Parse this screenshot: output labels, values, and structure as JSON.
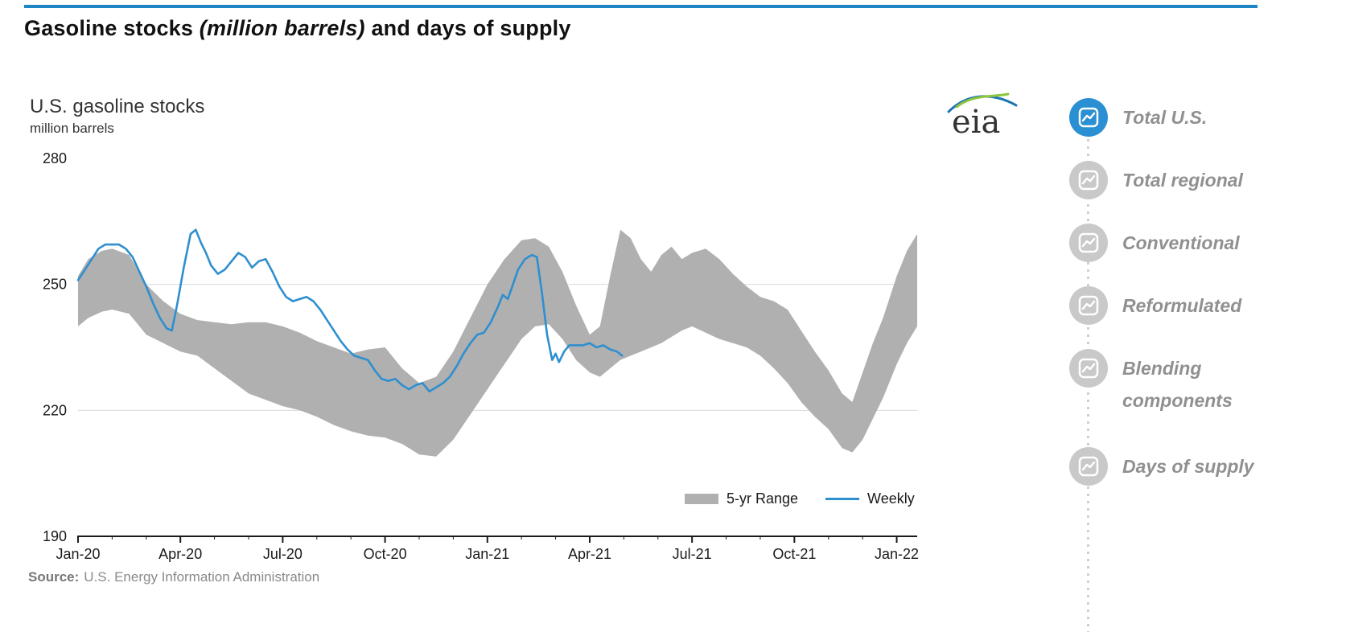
{
  "page": {
    "title_prefix": "Gasoline stocks ",
    "title_italic": "(million barrels)",
    "title_suffix": " and days of supply"
  },
  "colors": {
    "accent_blue": "#1f86c6",
    "weekly_line": "#2e8fd0",
    "band_gray": "#b0b0b0",
    "sidebar_active": "#2b8fd3",
    "sidebar_inactive": "#c9c9c9",
    "sidebar_label_gray": "#909090"
  },
  "chart": {
    "title": "U.S. gasoline stocks",
    "subtitle": "million barrels",
    "logo_text": "eia",
    "source_label": "Source:",
    "source_text": "U.S. Energy Information Administration",
    "legend": [
      {
        "label": "5-yr Range",
        "color": "#b0b0b0"
      },
      {
        "label": "Weekly",
        "color": "#2e8fd0"
      }
    ]
  },
  "sidebar": {
    "items": [
      {
        "label": "Total U.S.",
        "active": true
      },
      {
        "label": "Total regional",
        "active": false
      },
      {
        "label": "Conventional",
        "active": false
      },
      {
        "label": "Reformulated",
        "active": false
      },
      {
        "label": "Blending components",
        "active": false
      },
      {
        "label": "Days of supply",
        "active": false
      }
    ]
  },
  "chart_data": {
    "type": "line",
    "title": "U.S. gasoline stocks",
    "ylabel": "million barrels",
    "ylim": [
      190,
      280
    ],
    "y_ticks": [
      190,
      220,
      250,
      280
    ],
    "x_tick_labels": [
      "Jan-20",
      "Apr-20",
      "Jul-20",
      "Oct-20",
      "Jan-21",
      "Apr-21",
      "Jul-21",
      "Oct-21",
      "Jan-22"
    ],
    "x_tick_months": [
      0,
      3,
      6,
      9,
      12,
      15,
      18,
      21,
      24
    ],
    "x_range_months": [
      0,
      24.6
    ],
    "grid": "horizontal",
    "legend_position": "bottom-right",
    "series": [
      {
        "name": "5-yr Range",
        "type": "band",
        "color": "#b0b0b0",
        "points_format": [
          "month",
          "lower",
          "upper"
        ],
        "points": [
          [
            0,
            240,
            252
          ],
          [
            0.3,
            242,
            256
          ],
          [
            0.7,
            243.5,
            258
          ],
          [
            1,
            244,
            258.5
          ],
          [
            1.5,
            243,
            257
          ],
          [
            2,
            238,
            250
          ],
          [
            2.5,
            236,
            246
          ],
          [
            3,
            234,
            243
          ],
          [
            3.5,
            233,
            241.5
          ],
          [
            4,
            230,
            241
          ],
          [
            4.5,
            227,
            240.5
          ],
          [
            5,
            224,
            241
          ],
          [
            5.5,
            222.5,
            241
          ],
          [
            6,
            221,
            240
          ],
          [
            6.5,
            220,
            238.5
          ],
          [
            7,
            218.5,
            236.5
          ],
          [
            7.5,
            216.5,
            235
          ],
          [
            8,
            215,
            233.5
          ],
          [
            8.5,
            214,
            234.5
          ],
          [
            9,
            213.5,
            235
          ],
          [
            9.5,
            212,
            230
          ],
          [
            10,
            209.5,
            226.5
          ],
          [
            10.5,
            209,
            228
          ],
          [
            11,
            213,
            234
          ],
          [
            11.5,
            219,
            242
          ],
          [
            12,
            225,
            250
          ],
          [
            12.5,
            231,
            256
          ],
          [
            13,
            237,
            260.5
          ],
          [
            13.4,
            240,
            261
          ],
          [
            13.8,
            240.5,
            259
          ],
          [
            14.2,
            237,
            253
          ],
          [
            14.6,
            232,
            245
          ],
          [
            15,
            229,
            238
          ],
          [
            15.3,
            228,
            240
          ],
          [
            15.6,
            230,
            252
          ],
          [
            15.9,
            232,
            263
          ],
          [
            16.2,
            233,
            261
          ],
          [
            16.5,
            234,
            256
          ],
          [
            16.8,
            235,
            253
          ],
          [
            17.1,
            236,
            257
          ],
          [
            17.4,
            237.5,
            259
          ],
          [
            17.7,
            239,
            256
          ],
          [
            18,
            240,
            257.5
          ],
          [
            18.4,
            238.5,
            258.5
          ],
          [
            18.8,
            237,
            256
          ],
          [
            19.2,
            236,
            252.5
          ],
          [
            19.6,
            235,
            249.5
          ],
          [
            20,
            233,
            247
          ],
          [
            20.4,
            230,
            246
          ],
          [
            20.8,
            226.5,
            244
          ],
          [
            21.2,
            222,
            239
          ],
          [
            21.6,
            218.5,
            234
          ],
          [
            22,
            215.5,
            229.5
          ],
          [
            22.4,
            211,
            224
          ],
          [
            22.7,
            210,
            222
          ],
          [
            23,
            213,
            229
          ],
          [
            23.3,
            218,
            236
          ],
          [
            23.6,
            223,
            242
          ],
          [
            24,
            231,
            252
          ],
          [
            24.3,
            236,
            258
          ],
          [
            24.6,
            240,
            262
          ]
        ]
      },
      {
        "name": "Weekly",
        "type": "line",
        "color": "#2e8fd0",
        "points_format": [
          "month",
          "value"
        ],
        "points": [
          [
            0,
            251
          ],
          [
            0.2,
            253.5
          ],
          [
            0.4,
            256
          ],
          [
            0.6,
            258.5
          ],
          [
            0.8,
            259.5
          ],
          [
            1,
            259.5
          ],
          [
            1.2,
            259.5
          ],
          [
            1.4,
            258.5
          ],
          [
            1.6,
            256.5
          ],
          [
            1.8,
            253
          ],
          [
            2,
            249.5
          ],
          [
            2.2,
            245.5
          ],
          [
            2.4,
            242
          ],
          [
            2.6,
            239.5
          ],
          [
            2.75,
            239
          ],
          [
            2.9,
            245
          ],
          [
            3.1,
            254
          ],
          [
            3.3,
            262
          ],
          [
            3.45,
            263
          ],
          [
            3.6,
            260
          ],
          [
            3.75,
            257.5
          ],
          [
            3.9,
            254.5
          ],
          [
            4.1,
            252.5
          ],
          [
            4.3,
            253.5
          ],
          [
            4.5,
            255.5
          ],
          [
            4.7,
            257.5
          ],
          [
            4.9,
            256.5
          ],
          [
            5.1,
            254
          ],
          [
            5.3,
            255.5
          ],
          [
            5.5,
            256
          ],
          [
            5.7,
            253
          ],
          [
            5.9,
            249.5
          ],
          [
            6.1,
            247
          ],
          [
            6.3,
            246
          ],
          [
            6.5,
            246.5
          ],
          [
            6.7,
            247
          ],
          [
            6.9,
            246
          ],
          [
            7.1,
            244
          ],
          [
            7.3,
            241.5
          ],
          [
            7.5,
            239
          ],
          [
            7.7,
            236.5
          ],
          [
            7.9,
            234.5
          ],
          [
            8.1,
            233
          ],
          [
            8.3,
            232.5
          ],
          [
            8.5,
            232
          ],
          [
            8.7,
            229.5
          ],
          [
            8.9,
            227.5
          ],
          [
            9.1,
            227
          ],
          [
            9.3,
            227.5
          ],
          [
            9.5,
            226
          ],
          [
            9.7,
            225
          ],
          [
            9.9,
            226
          ],
          [
            10.1,
            226.5
          ],
          [
            10.3,
            224.5
          ],
          [
            10.5,
            225.5
          ],
          [
            10.7,
            226.5
          ],
          [
            10.9,
            228
          ],
          [
            11.1,
            230.5
          ],
          [
            11.3,
            233.5
          ],
          [
            11.5,
            236
          ],
          [
            11.7,
            238
          ],
          [
            11.9,
            238.5
          ],
          [
            12.1,
            241
          ],
          [
            12.3,
            244.5
          ],
          [
            12.45,
            247.5
          ],
          [
            12.6,
            246.5
          ],
          [
            12.75,
            250
          ],
          [
            12.9,
            253.5
          ],
          [
            13.1,
            256
          ],
          [
            13.3,
            257
          ],
          [
            13.45,
            256.5
          ],
          [
            13.6,
            248
          ],
          [
            13.75,
            238
          ],
          [
            13.9,
            232
          ],
          [
            14,
            233.5
          ],
          [
            14.1,
            231.5
          ],
          [
            14.25,
            234
          ],
          [
            14.4,
            235.5
          ],
          [
            14.6,
            235.5
          ],
          [
            14.8,
            235.5
          ],
          [
            15,
            236
          ],
          [
            15.2,
            235
          ],
          [
            15.4,
            235.5
          ],
          [
            15.6,
            234.5
          ],
          [
            15.8,
            234
          ],
          [
            15.95,
            233
          ]
        ]
      }
    ]
  }
}
